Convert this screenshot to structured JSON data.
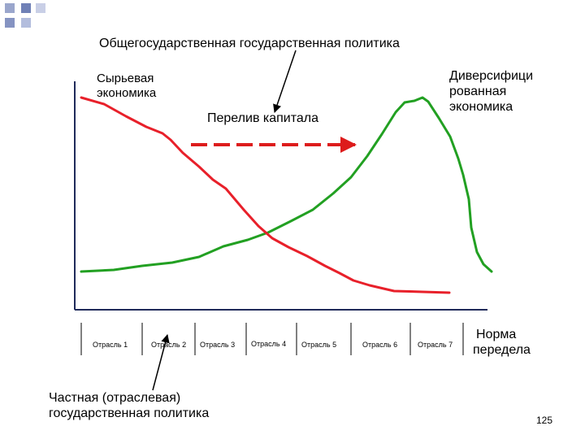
{
  "decor": {
    "square_colors": [
      "#9aa6cc",
      "#6f80b6",
      "#c9cfe6",
      "#8593c2",
      "#b3bddd"
    ]
  },
  "top_label": "Общегосударственная государственная политика",
  "left_curve_label": [
    "Сырьевая",
    "экономика"
  ],
  "right_curve_label": [
    "Диверсифици",
    "рованная",
    "экономика"
  ],
  "flow_label": "Перелив капитала",
  "x_axis_label": [
    "Норма",
    "передела"
  ],
  "sectors": [
    "Отрасль 1",
    "Отрасль 2",
    "Отрасль 3",
    "Отрасль 4",
    "Отрасль 5",
    "Отрасль 6",
    "Отрасль 7"
  ],
  "bottom_label": [
    "Частная (отраслевая)",
    "государственная политика"
  ],
  "page_number": "125",
  "colors": {
    "raw_economy_curve": "#e8202a",
    "diversified_curve": "#22a022",
    "transfer_arrow": "#dd1c1c",
    "axis": "#1f2a5a"
  }
}
